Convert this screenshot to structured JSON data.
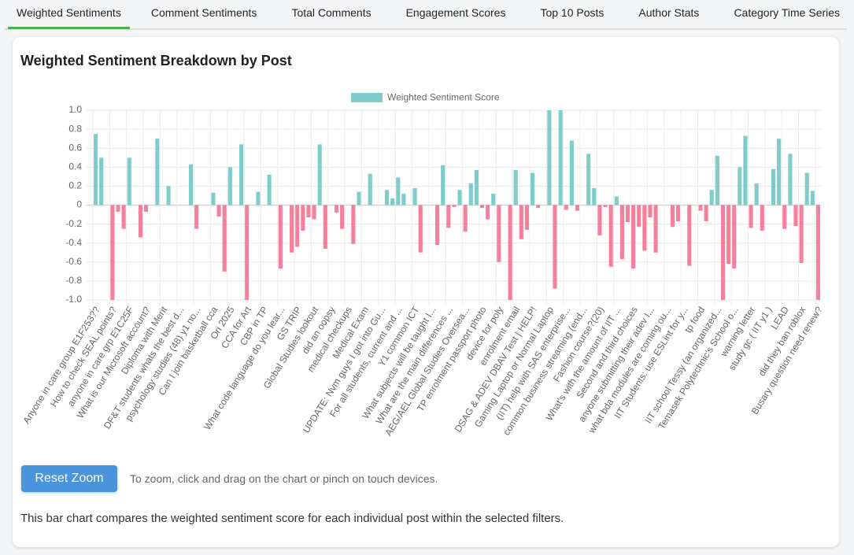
{
  "tabs": [
    "Weighted Sentiments",
    "Comment Sentiments",
    "Total Comments",
    "Engagement Scores",
    "Top 10 Posts",
    "Author Stats",
    "Category Time Series"
  ],
  "card": {
    "title": "Weighted Sentiment Breakdown by Post",
    "button": "Reset Zoom",
    "hint": "To zoom, click and drag on the chart or pinch on touch devices.",
    "description": "This bar chart compares the weighted sentiment score for each individual post within the selected filters."
  },
  "chart_data": {
    "type": "bar",
    "grid": true,
    "legend": "top",
    "ylim": [
      -1,
      1
    ],
    "yticks": [
      {
        "value": 1,
        "label": "1.0"
      },
      0.8,
      0.6,
      0.4,
      0.2,
      0,
      -0.2,
      -0.4,
      -0.6,
      -0.8,
      {
        "value": -1,
        "label": "-1.0"
      }
    ],
    "categories": [
      "Anyone in care group E1F253??",
      null,
      null,
      "How to check SEAL points?",
      null,
      null,
      "anyone in care grp E1C25F",
      null,
      null,
      "What is our Microsoft account?",
      null,
      null,
      "Diploma with Merit",
      null,
      null,
      "DF&T students whats the best d...",
      null,
      null,
      "psychology studies (48) y1 no...",
      null,
      null,
      "Can I join basketball cca",
      null,
      null,
      "Ori 2025",
      null,
      null,
      "CCA for Art",
      null,
      null,
      "CBP in TP",
      null,
      null,
      "What code language do you lear...",
      null,
      null,
      "GS TRIP",
      null,
      null,
      "Global Studies lookout",
      null,
      null,
      "did an oopsy",
      null,
      null,
      "medical checkups",
      null,
      null,
      "Medical Exam",
      null,
      null,
      "UPDATE: Nvm guys I got into Gu...",
      null,
      null,
      "For all students, current and ...",
      null,
      null,
      "Y1 common ICT",
      null,
      null,
      "What subjects will be taught I...",
      null,
      null,
      "What are the main differences ...",
      null,
      null,
      "AEG/AEL Global Studies Oversea...",
      null,
      null,
      "TP enrolment passport photo",
      null,
      null,
      "device for poly",
      null,
      null,
      "enrolment email",
      null,
      null,
      "DSAG & ADEV DBAV Test | HELP!",
      null,
      null,
      "Gaming Laptop or Normal Laptop",
      null,
      null,
      "(IIT) help with SAS enterprise...",
      null,
      null,
      "common business streaming (end...",
      null,
      null,
      "Fashion course?(20)",
      null,
      null,
      "What's with the amount of IIT ...",
      null,
      null,
      "Second and third choices",
      null,
      null,
      "anyone submitting their adev I...",
      null,
      null,
      "what bda modules are coming ou...",
      null,
      null,
      "IIT Students: use ESLint for y...",
      null,
      null,
      "tp food",
      null,
      null,
      "IIT school Tessy (an organized...",
      null,
      null,
      "Temasek Polytechnic's School o...",
      null,
      null,
      "warning letter",
      null,
      null,
      "study gc ( IIT y1 )",
      null,
      null,
      "LEAD",
      null,
      null,
      "did they ban roblox",
      null,
      null,
      "Busary question need renew?"
    ],
    "series": [
      {
        "name": "Weighted Sentiment Score",
        "color": "#7fcdcb",
        "negative_color": "#f5809b",
        "values": [
          0.75,
          0.5,
          0,
          -1,
          -0.07,
          -0.25,
          0.5,
          0,
          -0.34,
          -0.07,
          0,
          0.7,
          0,
          0.2,
          0,
          0,
          0,
          0.43,
          -0.25,
          0,
          0,
          0.13,
          -0.12,
          -0.7,
          0.4,
          0,
          0.64,
          -1,
          0,
          0.14,
          0,
          0.32,
          0,
          -0.67,
          0,
          -0.5,
          -0.44,
          -0.27,
          -0.13,
          -0.15,
          0.64,
          -0.46,
          0,
          -0.08,
          -0.25,
          0,
          -0.41,
          0.14,
          0,
          0.33,
          0,
          0,
          0.16,
          0.07,
          0.29,
          0.12,
          0,
          0.18,
          -0.5,
          0,
          0,
          -0.42,
          0.42,
          -0.24,
          -0.02,
          0.16,
          -0.28,
          0.23,
          0.37,
          -0.03,
          -0.15,
          0.12,
          -0.6,
          0,
          -1,
          0.37,
          -0.36,
          -0.26,
          0.34,
          -0.03,
          0,
          1,
          -0.88,
          1,
          -0.05,
          0.68,
          -0.06,
          0,
          0.54,
          0.18,
          -0.32,
          -0.02,
          -0.65,
          0.09,
          -0.57,
          -0.18,
          -0.67,
          -0.23,
          -0.48,
          -0.13,
          -0.5,
          0,
          0,
          -0.23,
          -0.17,
          0,
          -0.64,
          0,
          -0.06,
          -0.17,
          0.16,
          0.52,
          -1,
          -0.62,
          -0.67,
          0.4,
          0.73,
          -0.24,
          0.23,
          -0.27,
          0,
          0.38,
          0.7,
          -0.25,
          0.54,
          -0.22,
          -0.61,
          0.34,
          0.15,
          -1
        ]
      }
    ]
  }
}
